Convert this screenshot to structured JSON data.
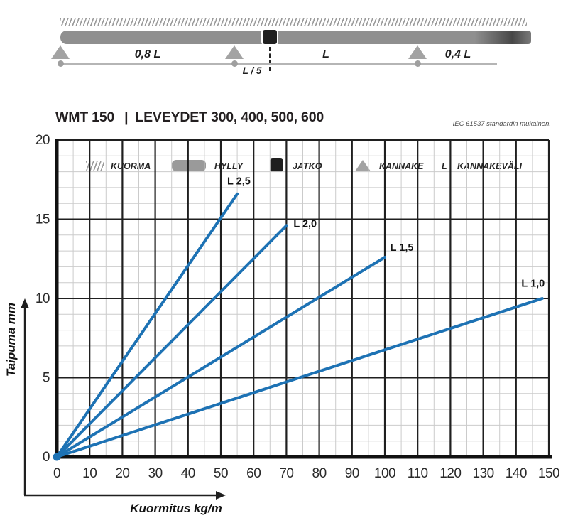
{
  "diagram": {
    "span1": "0,8 L",
    "span2": "L",
    "span3": "0,4 L",
    "joint_offset": "L / 5"
  },
  "legend": {
    "items": [
      {
        "icon": "load-hatch-icon",
        "label": "KUORMA"
      },
      {
        "icon": "shelf-icon",
        "label": "HYLLY"
      },
      {
        "icon": "joint-icon",
        "label": "JATKO"
      },
      {
        "icon": "support-icon",
        "label": "KANNAKE"
      },
      {
        "icon": "letter-l-symbol",
        "label": "KANNAKEVÄLI",
        "symbol": "L"
      }
    ]
  },
  "header": {
    "product": "WMT 150",
    "separator": "|",
    "widths": "LEVEYDET 300, 400, 500, 600",
    "standard_note": "IEC 61537 standardin mukainen."
  },
  "chart_data": {
    "type": "line",
    "title": "",
    "xlabel": "Kuormitus kg/m",
    "ylabel": "Taipuma mm",
    "xlim": [
      0,
      150
    ],
    "ylim": [
      0,
      20
    ],
    "x_ticks": [
      0,
      10,
      20,
      30,
      40,
      50,
      60,
      70,
      80,
      90,
      100,
      110,
      120,
      130,
      140,
      150
    ],
    "y_ticks": [
      0,
      5,
      10,
      15,
      20
    ],
    "x_minor_step": 5,
    "y_minor_step": 1,
    "grid": true,
    "legend_position": "inline-labels",
    "line_color": "#1d72b4",
    "major_grid_color": "#1f1f1f",
    "minor_grid_color": "#cbcbcb",
    "series": [
      {
        "name": "L 2,5",
        "points": [
          [
            0,
            0
          ],
          [
            55,
            16.6
          ]
        ],
        "label_pos": [
          55.5,
          17.2
        ]
      },
      {
        "name": "L 2,0",
        "points": [
          [
            0,
            0
          ],
          [
            70,
            14.6
          ]
        ],
        "label_pos": [
          75.7,
          14.5
        ]
      },
      {
        "name": "L 1,5",
        "points": [
          [
            0,
            0
          ],
          [
            100,
            12.6
          ]
        ],
        "label_pos": [
          105.2,
          13.0
        ]
      },
      {
        "name": "L 1,0",
        "points": [
          [
            0,
            0
          ],
          [
            148,
            10.0
          ]
        ],
        "label_pos": [
          145.2,
          10.75
        ]
      }
    ]
  }
}
